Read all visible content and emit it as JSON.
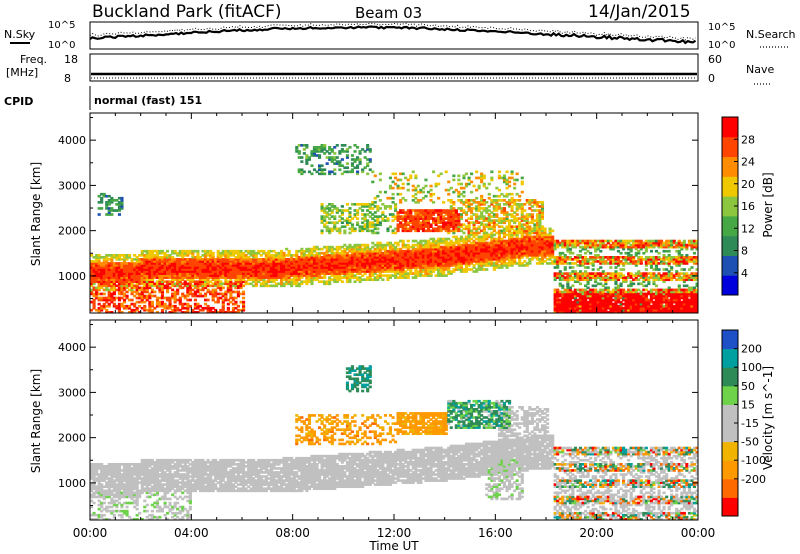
{
  "header": {
    "station": "Buckland Park (fitACF)",
    "beam": "Beam 03",
    "date": "14/Jan/2015"
  },
  "strip_panels": {
    "nsky_label": "N.Sky",
    "nsearch_label": "N.Search",
    "freq_label_1": "Freq.",
    "freq_label_2": "[MHz]",
    "nave_label": "Nave",
    "cpid_label": "CPID",
    "cpid_value": "normal (fast) 151",
    "noise_ticks": [
      "10^5",
      "10^0"
    ],
    "freq_ticks": [
      "18",
      "8"
    ],
    "nave_ticks": [
      "60",
      "0"
    ]
  },
  "colors": {
    "power_scale": [
      "#0000dd",
      "#1e50b4",
      "#2e8b57",
      "#45a845",
      "#8cc63f",
      "#f0c800",
      "#ff8c00",
      "#ff4500",
      "#ff0000"
    ],
    "velocity_scale": [
      "#ff0000",
      "#ff6a00",
      "#ff9900",
      "#f0b400",
      "#c0c0c0",
      "#c0c0c0",
      "#6ed24b",
      "#2e8b57",
      "#00a0a0",
      "#1e50c8"
    ],
    "ground_scatter": "#c0c0c0"
  },
  "chart_data": [
    {
      "type": "heatmap",
      "title": "",
      "xlabel": "Time UT",
      "ylabel": "Slant Range [km]",
      "xlim": [
        0,
        24
      ],
      "ylim": [
        180,
        4600
      ],
      "x_ticks": [
        "00:00",
        "04:00",
        "08:00",
        "12:00",
        "16:00",
        "20:00",
        "00:00"
      ],
      "y_ticks": [
        "1000",
        "2000",
        "3000",
        "4000"
      ],
      "colorbar": {
        "label": "Power [dB]",
        "range": [
          0,
          32
        ],
        "ticks": [
          "4",
          "8",
          "12",
          "16",
          "20",
          "24",
          "28"
        ]
      },
      "features": [
        {
          "time_start": 0.0,
          "time_end": 7.5,
          "range_km": 1150,
          "power_db": 30,
          "description": "strong near-range scatter band"
        },
        {
          "time_start": 7.5,
          "time_end": 14.0,
          "range_km": 1350,
          "power_db": 28,
          "description": "scatter band rising in range"
        },
        {
          "time_start": 14.0,
          "time_end": 17.5,
          "range_km": 1650,
          "power_db": 26,
          "description": "scatter band peak range"
        },
        {
          "time_start": 12.0,
          "time_end": 14.5,
          "range_km": 2200,
          "power_db": 26,
          "description": "strong patch near 2200 km"
        },
        {
          "time_start": 8.0,
          "time_end": 11.0,
          "range_km": 3500,
          "power_db": 10,
          "description": "weak far-range echoes"
        },
        {
          "time_start": 18.2,
          "time_end": 24.0,
          "range_km": 400,
          "power_db": 30,
          "description": "post-mode-change near-range banding"
        }
      ]
    },
    {
      "type": "heatmap",
      "title": "",
      "xlabel": "Time UT",
      "ylabel": "Slant Range [km]",
      "xlim": [
        0,
        24
      ],
      "ylim": [
        180,
        4600
      ],
      "x_ticks": [
        "00:00",
        "04:00",
        "08:00",
        "12:00",
        "16:00",
        "20:00",
        "00:00"
      ],
      "y_ticks": [
        "1000",
        "2000",
        "3000",
        "4000"
      ],
      "colorbar": {
        "label": "Velocity [m s^-1]",
        "range": [
          -250,
          250
        ],
        "ticks": [
          "200",
          "100",
          "50",
          "15",
          "-15",
          "-50",
          "-100",
          "-200"
        ]
      },
      "features": [
        {
          "time_start": 0.0,
          "time_end": 18.0,
          "range_km": 1200,
          "velocity_ms": 0,
          "description": "ground scatter (grey) band"
        },
        {
          "time_start": 12.0,
          "time_end": 14.0,
          "range_km": 2300,
          "velocity_ms": -60,
          "description": "negative velocity patch"
        },
        {
          "time_start": 14.0,
          "time_end": 16.5,
          "range_km": 2500,
          "velocity_ms": 60,
          "description": "positive velocity patch"
        },
        {
          "time_start": 10.0,
          "time_end": 11.0,
          "range_km": 3300,
          "velocity_ms": 200,
          "description": "high positive velocity echoes"
        }
      ]
    }
  ]
}
